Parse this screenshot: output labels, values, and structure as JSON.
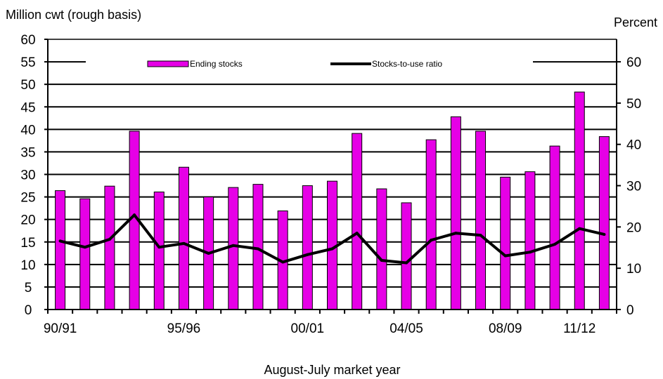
{
  "chart_data": {
    "type": "bar",
    "title": "",
    "xlabel": "August-July market year",
    "ylabel_left": "Million cwt (rough basis)",
    "ylabel_right": "Percent",
    "ylim_left": [
      0,
      60
    ],
    "ylim_right": [
      0,
      65.45
    ],
    "yticks_left": [
      0,
      5,
      10,
      15,
      20,
      25,
      30,
      35,
      40,
      45,
      50,
      55,
      60
    ],
    "yticks_right": [
      0,
      10,
      20,
      30,
      40,
      50,
      60
    ],
    "x_tick_labels": [
      "90/91",
      "95/96",
      "00/01",
      "04/05",
      "08/09",
      "11/12"
    ],
    "categories": [
      "90/91",
      "91/92",
      "92/93",
      "93/94",
      "94/95",
      "95/96",
      "96/97",
      "97/98",
      "98/99",
      "99/00",
      "00/01",
      "01/02",
      "02/03",
      "03/04",
      "04/05",
      "05/06",
      "06/07",
      "07/08",
      "08/09",
      "09/10",
      "10/11",
      "11/12",
      "12/13"
    ],
    "grid": true,
    "legend_position": "top",
    "series": [
      {
        "name": "Ending stocks",
        "kind": "bar",
        "axis": "left",
        "color": "#e600e6",
        "values": [
          26.4,
          24.6,
          27.4,
          39.6,
          26.1,
          31.6,
          25.0,
          27.1,
          27.8,
          21.9,
          27.5,
          28.5,
          39.1,
          26.8,
          23.7,
          37.7,
          42.8,
          39.6,
          29.4,
          30.6,
          36.3,
          48.3,
          38.4
        ]
      },
      {
        "name": "Stocks-to-use ratio",
        "kind": "line",
        "axis": "right",
        "color": "#000000",
        "values": [
          16.6,
          15.1,
          17.0,
          22.9,
          15.1,
          16.0,
          13.6,
          15.5,
          14.7,
          11.5,
          13.3,
          14.7,
          18.5,
          11.9,
          11.3,
          16.8,
          18.5,
          18.0,
          13.0,
          13.9,
          15.8,
          19.6,
          18.2
        ]
      }
    ]
  }
}
